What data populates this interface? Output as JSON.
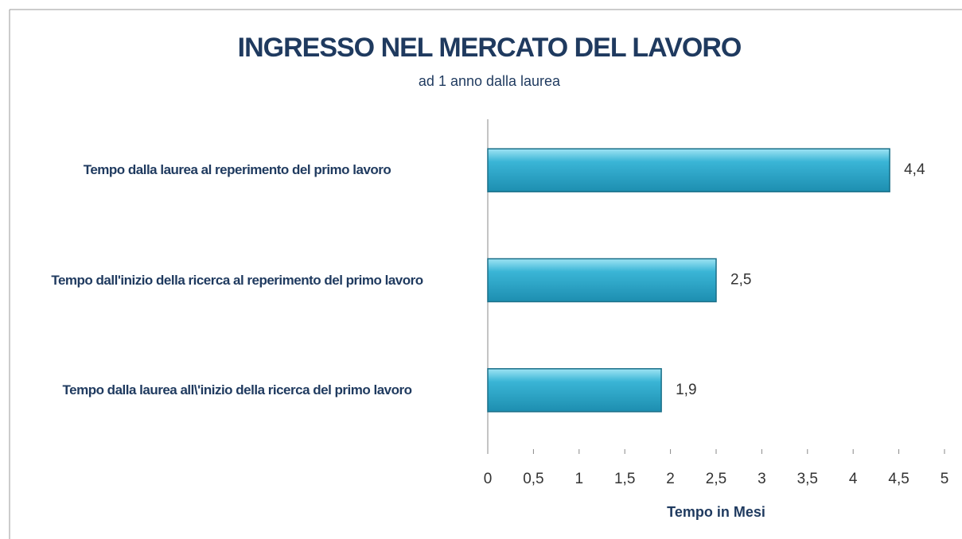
{
  "chart_data": {
    "type": "bar",
    "orientation": "horizontal",
    "title": "INGRESSO NEL MERCATO DEL LAVORO",
    "subtitle": "ad 1 anno dalla laurea",
    "x_label": "Tempo in Mesi",
    "categories": [
      "Tempo dalla laurea al reperimento del primo lavoro",
      "Tempo dall'inizio della ricerca al reperimento del primo lavoro",
      "Tempo dalla laurea all\\'inizio della ricerca del primo lavoro"
    ],
    "values": [
      4.4,
      2.5,
      1.9
    ],
    "value_labels": [
      "4,4",
      "2,5",
      "1,9"
    ],
    "color": "#3ab5d6",
    "xlim": [
      0,
      5
    ],
    "xticks": [
      0,
      {
        "value": 0.5,
        "label": "0,5"
      },
      1,
      {
        "value": 1.5,
        "label": "1,5"
      },
      2,
      {
        "value": 2.5,
        "label": "2,5"
      },
      3,
      {
        "value": 3.5,
        "label": "3,5"
      },
      4,
      {
        "value": 4.5,
        "label": "4,5"
      },
      5
    ],
    "grid": false
  }
}
